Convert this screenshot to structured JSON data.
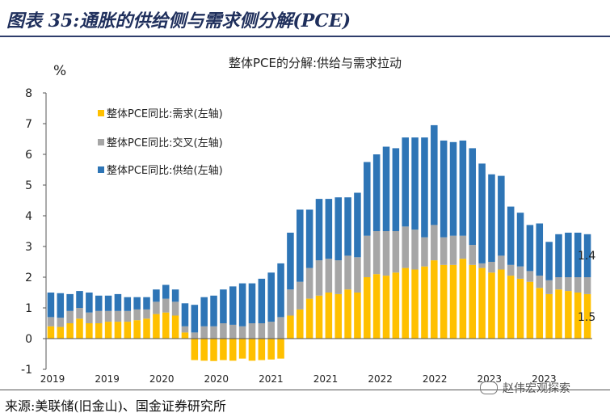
{
  "header": {
    "figure_title": "图表 35:通胀的供给侧与需求侧分解(PCE)"
  },
  "source": {
    "text": "来源:美联储(旧金山)、国金证券研究所"
  },
  "watermark": {
    "text": "赵伟宏观探索"
  },
  "chart_data": {
    "type": "bar",
    "stacked": true,
    "title": "整体PCE的分解:供给与需求拉动",
    "ylabel": "%",
    "ylim": [
      -1,
      8
    ],
    "yticks": [
      -1,
      0,
      1,
      2,
      3,
      4,
      5,
      6,
      7,
      8
    ],
    "x_tick_labels": [
      "2019",
      "2019",
      "2020",
      "2020",
      "2021",
      "2021",
      "2022",
      "2022",
      "2023",
      "2023"
    ],
    "legend_position": "top-left",
    "grid": false,
    "annotations": [
      {
        "text": "1.4"
      },
      {
        "text": "1.5"
      }
    ],
    "series": [
      {
        "name": "整体PCE同比:需求(左轴)",
        "color": "#FFC000",
        "values": [
          0.4,
          0.38,
          0.5,
          0.65,
          0.5,
          0.5,
          0.55,
          0.55,
          0.55,
          0.6,
          0.65,
          0.8,
          0.85,
          0.75,
          0.2,
          -0.7,
          -0.72,
          -0.73,
          -0.7,
          -0.72,
          -0.65,
          -0.72,
          -0.7,
          -0.68,
          -0.65,
          0.75,
          0.95,
          1.3,
          1.4,
          1.5,
          1.45,
          1.6,
          1.5,
          2.0,
          2.1,
          2.05,
          2.15,
          2.3,
          2.25,
          2.35,
          2.55,
          2.4,
          2.4,
          2.6,
          2.4,
          2.3,
          2.15,
          2.25,
          2.05,
          1.95,
          1.85,
          1.65,
          1.45,
          1.6,
          1.55,
          1.5,
          1.45
        ]
      },
      {
        "name": "整体PCE同比:交叉(左轴)",
        "color": "#A6A6A6",
        "values": [
          0.3,
          0.3,
          0.4,
          0.35,
          0.35,
          0.4,
          0.35,
          0.35,
          0.35,
          0.35,
          0.3,
          0.4,
          0.45,
          0.45,
          0.2,
          0.2,
          0.4,
          0.4,
          0.5,
          0.45,
          0.4,
          0.5,
          0.5,
          0.55,
          0.7,
          0.85,
          0.9,
          1.0,
          1.15,
          1.1,
          1.1,
          1.1,
          1.15,
          1.35,
          1.4,
          1.45,
          1.35,
          1.35,
          1.3,
          0.95,
          1.15,
          0.9,
          0.95,
          0.75,
          0.65,
          0.15,
          0.35,
          0.45,
          0.35,
          0.4,
          0.35,
          0.4,
          0.45,
          0.4,
          0.45,
          0.5,
          0.55
        ]
      },
      {
        "name": "整体PCE同比:供给(左轴)",
        "color": "#2E75B6",
        "values": [
          0.8,
          0.8,
          0.55,
          0.55,
          0.65,
          0.5,
          0.5,
          0.55,
          0.45,
          0.4,
          0.4,
          0.4,
          0.45,
          0.4,
          0.75,
          0.9,
          0.95,
          1.0,
          1.1,
          1.25,
          1.4,
          1.3,
          1.45,
          1.6,
          1.75,
          1.85,
          2.35,
          1.9,
          2.0,
          1.95,
          2.05,
          1.9,
          2.1,
          2.4,
          2.5,
          2.75,
          2.7,
          2.9,
          3.0,
          3.25,
          3.25,
          3.15,
          3.05,
          3.1,
          3.15,
          3.25,
          2.85,
          2.6,
          1.9,
          1.75,
          1.5,
          1.7,
          1.25,
          1.4,
          1.45,
          1.45,
          1.4
        ]
      }
    ]
  }
}
